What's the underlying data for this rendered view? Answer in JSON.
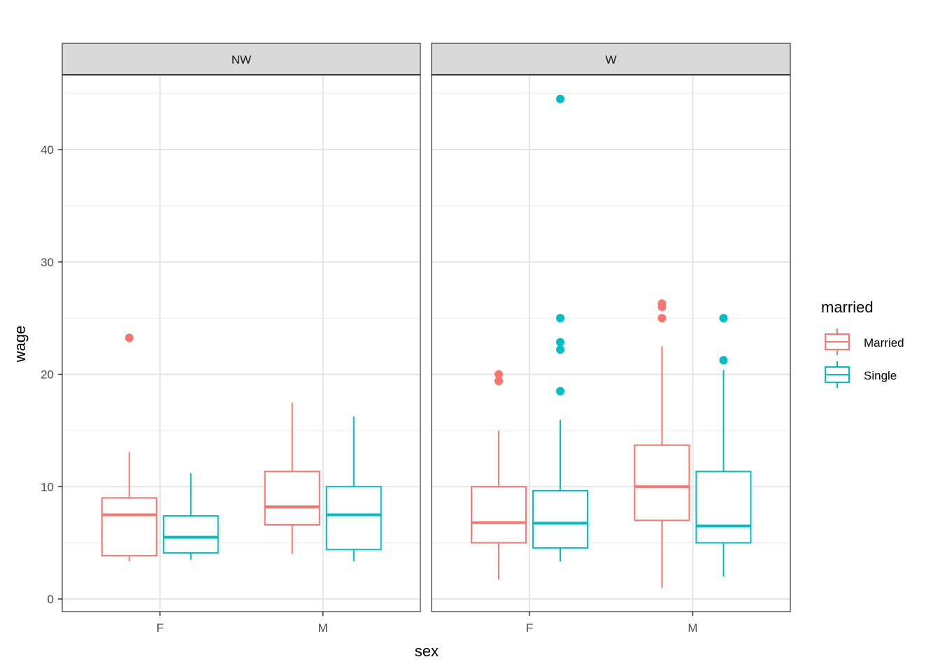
{
  "chart_data": {
    "type": "boxplot",
    "title": "",
    "xlabel": "sex",
    "ylabel": "wage",
    "ylim": [
      -1.0,
      46.0
    ],
    "y_ticks": [
      0,
      10,
      20,
      30,
      40
    ],
    "y_tick_labels": [
      "0",
      "10",
      "20",
      "30",
      "40"
    ],
    "categories": [
      "F",
      "M"
    ],
    "grid": true,
    "legend": {
      "title": "married",
      "position": "right",
      "entries": [
        {
          "name": "Married",
          "color": "#F8766D"
        },
        {
          "name": "Single",
          "color": "#00BFC4"
        }
      ]
    },
    "facets": [
      {
        "label": "NW",
        "groups": [
          {
            "sex": "F",
            "married": "Married",
            "lower": 3.35,
            "q1": 3.85,
            "median": 7.5,
            "q3": 9.0,
            "upper": 13.1,
            "outliers": [
              23.25
            ]
          },
          {
            "sex": "F",
            "married": "Single",
            "lower": 3.5,
            "q1": 4.1,
            "median": 5.5,
            "q3": 7.4,
            "upper": 11.2,
            "outliers": []
          },
          {
            "sex": "M",
            "married": "Married",
            "lower": 4.0,
            "q1": 6.6,
            "median": 8.2,
            "q3": 11.35,
            "upper": 17.5,
            "outliers": []
          },
          {
            "sex": "M",
            "married": "Single",
            "lower": 3.35,
            "q1": 4.4,
            "median": 7.5,
            "q3": 10.0,
            "upper": 16.25,
            "outliers": []
          }
        ]
      },
      {
        "label": "W",
        "groups": [
          {
            "sex": "F",
            "married": "Married",
            "lower": 1.75,
            "q1": 5.0,
            "median": 6.8,
            "q3": 10.0,
            "upper": 15.0,
            "outliers": [
              20.0,
              19.4
            ]
          },
          {
            "sex": "F",
            "married": "Single",
            "lower": 3.35,
            "q1": 4.55,
            "median": 6.75,
            "q3": 9.65,
            "upper": 15.95,
            "outliers": [
              18.5,
              22.2,
              22.85,
              25.0,
              44.5
            ]
          },
          {
            "sex": "M",
            "married": "Married",
            "lower": 1.0,
            "q1": 7.0,
            "median": 10.0,
            "q3": 13.7,
            "upper": 22.5,
            "outliers": [
              25.0,
              26.0,
              26.3
            ]
          },
          {
            "sex": "M",
            "married": "Single",
            "lower": 2.0,
            "q1": 5.0,
            "median": 6.5,
            "q3": 11.35,
            "upper": 20.4,
            "outliers": [
              21.25,
              25.0
            ]
          }
        ]
      }
    ]
  }
}
